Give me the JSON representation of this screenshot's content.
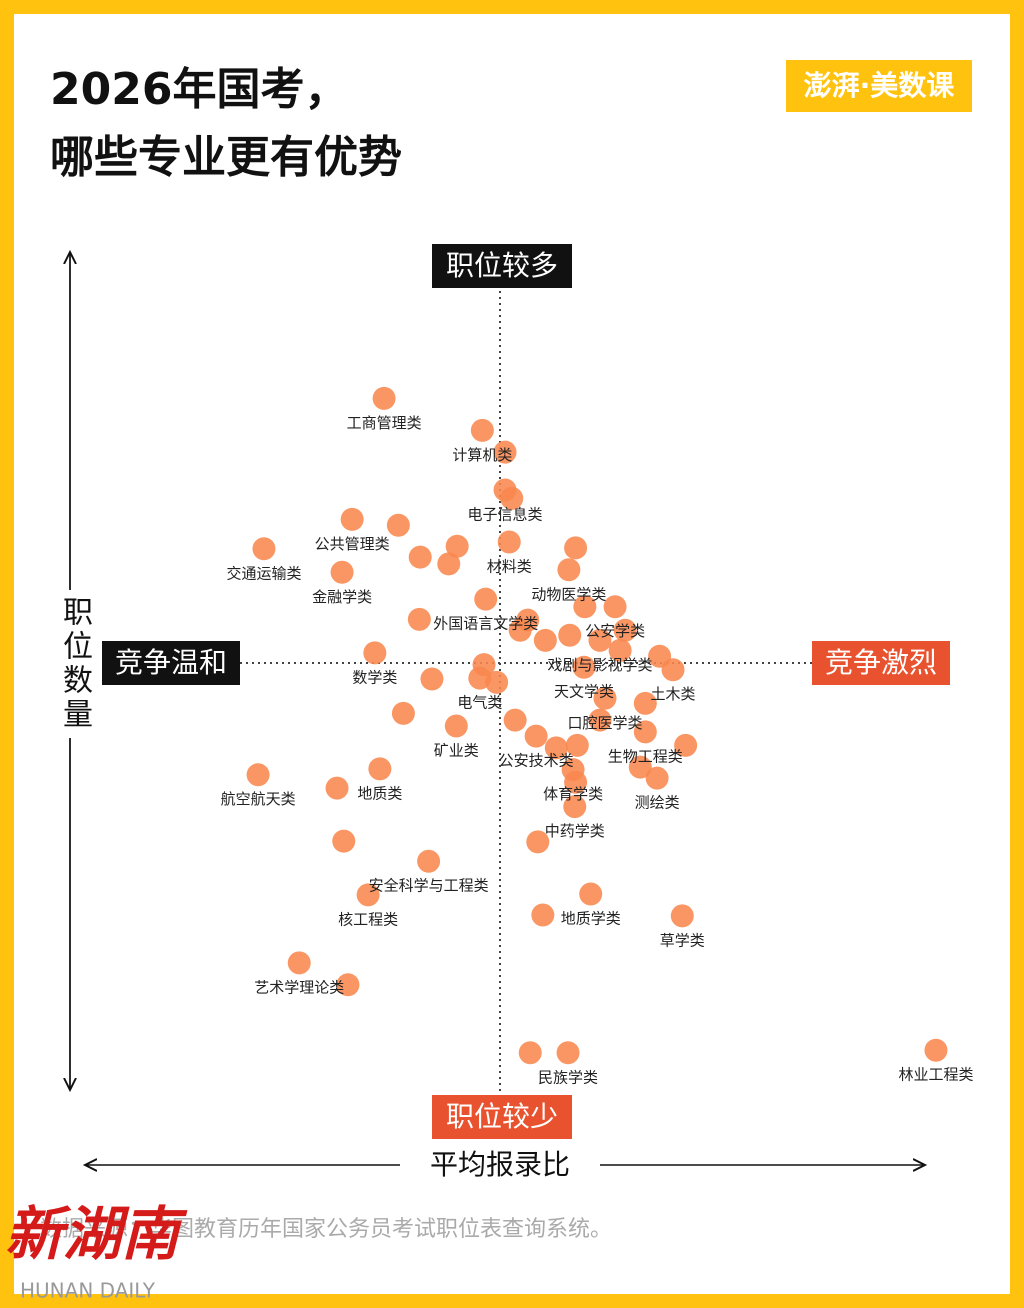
{
  "chart_data": {
    "type": "scatter",
    "title": [
      "2026年国考，",
      "哪些专业更有优势"
    ],
    "brand": "澎湃·美数课",
    "top_label": "职位较多",
    "bottom_label": "职位较少",
    "left_label": "竞争温和",
    "right_label": "竞争激烈",
    "y_label": "职位数量",
    "x_label": "平均报录比",
    "source": "数据来源：华图教育历年国家公务员考试职位表查询系统。",
    "watermark": [
      "新湖南",
      "HUNAN DAILY"
    ],
    "color": "#f8884d",
    "xlim": [
      0,
      105
    ],
    "ylim": [
      0,
      100
    ],
    "x": [
      36.2,
      47.9,
      50.6,
      32.4,
      21.9,
      31.2,
      51.1,
      58.2,
      48.3,
      63.7,
      35.1,
      61.9,
      47.6,
      60.0,
      70.6,
      62.5,
      44.8,
      54.3,
      67.3,
      21.2,
      35.7,
      58.7,
      68.7,
      58.9,
      41.5,
      34.3,
      60.8,
      71.7,
      26.1,
      58.1,
      101.9,
      31.4,
      30.6,
      38.5,
      41.9,
      40.5,
      43.9,
      44.9,
      37.9,
      40.4,
      31.9,
      51.8,
      59.0,
      53.6,
      55.1,
      54.5,
      59.2,
      56.7,
      66.7,
      72.1,
      69.0,
      67.3,
      52.4,
      55.4,
      58.3,
      64.9,
      60.1,
      49.6,
      48.1,
      50.6,
      51.4,
      59.0,
      53.3,
      61.9,
      64.3
    ],
    "values": [
      81.5,
      77.7,
      70.6,
      67.1,
      63.6,
      60.8,
      64.4,
      61.1,
      57.6,
      56.7,
      51.2,
      52.7,
      48.2,
      49.5,
      49.2,
      45.8,
      42.5,
      41.3,
      41.8,
      36.7,
      37.4,
      37.3,
      36.3,
      32.9,
      26.4,
      22.4,
      22.5,
      19.9,
      14.3,
      3.6,
      3.9,
      28.8,
      35.1,
      44.0,
      48.1,
      62.6,
      61.8,
      63.9,
      66.4,
      55.2,
      11.7,
      43.2,
      63.7,
      3.6,
      20.0,
      28.7,
      40.2,
      39.9,
      37.6,
      40.2,
      50.8,
      45.2,
      53.9,
      52.7,
      53.3,
      53.9,
      56.7,
      47.7,
      49.8,
      75.1,
      69.6,
      35.8,
      55.1,
      43.2,
      51.5
    ],
    "labels": [
      "工商管理类",
      "计算机类",
      "电子信息类",
      "公共管理类",
      "交通运输类",
      "金融学类",
      "材料类",
      "动物医学类",
      "外国语言文学类",
      "公安学类",
      "数学类",
      "戏剧与影视学类",
      "电气类",
      "天文学类",
      "土木类",
      "口腔医学类",
      "矿业类",
      "公安技术类",
      "生物工程类",
      "航空航天类",
      "地质类",
      "体育学类",
      "测绘类",
      "中药学类",
      "安全科学与工程类",
      "核工程类",
      "地质学类",
      "草学类",
      "艺术学理论类",
      "民族学类",
      "林业工程类",
      null,
      null,
      null,
      null,
      null,
      null,
      null,
      null,
      null,
      null,
      null,
      null,
      null,
      null,
      null,
      null,
      null,
      null,
      null,
      null,
      null,
      null,
      null,
      null,
      null,
      null,
      null,
      null,
      null,
      null,
      null,
      null,
      null,
      null
    ]
  }
}
